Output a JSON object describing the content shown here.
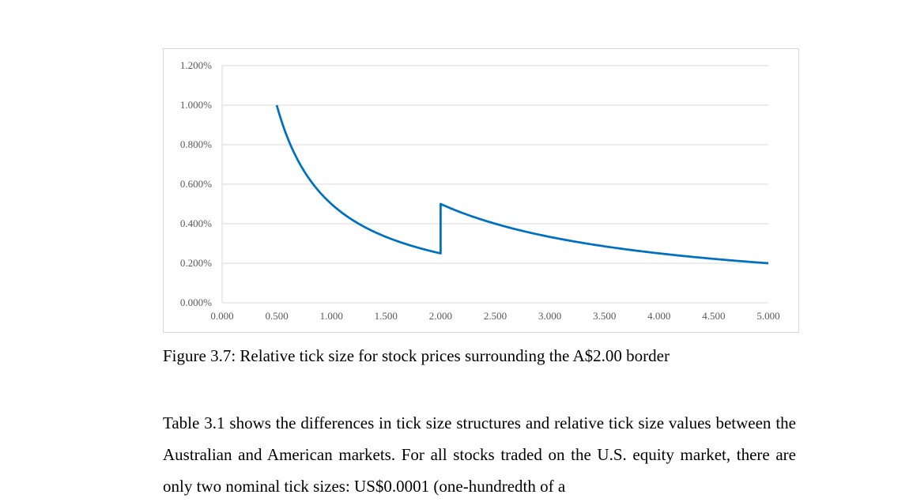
{
  "chart_data": {
    "type": "line",
    "title": "",
    "xlabel": "",
    "ylabel": "",
    "x_ticks": [
      "0.000",
      "0.500",
      "1.000",
      "1.500",
      "2.000",
      "2.500",
      "3.000",
      "3.500",
      "4.000",
      "4.500",
      "5.000"
    ],
    "y_ticks": [
      "0.000%",
      "0.200%",
      "0.400%",
      "0.600%",
      "0.800%",
      "1.000%",
      "1.200%"
    ],
    "xlim": [
      0,
      5
    ],
    "ylim": [
      0,
      1.2
    ],
    "grid": "horizontal",
    "legend": "none",
    "series": [
      {
        "color": "#0070c0",
        "segments": [
          {
            "tick_size": 0.005,
            "x_range": [
              0.5,
              2.0
            ],
            "points": [
              [
                0.5,
                1.0
              ],
              [
                0.75,
                0.667
              ],
              [
                1.0,
                0.5
              ],
              [
                1.5,
                0.333
              ],
              [
                2.0,
                0.25
              ]
            ]
          },
          {
            "tick_size": 0.01,
            "x_range": [
              2.0,
              5.0
            ],
            "points": [
              [
                2.0,
                0.5
              ],
              [
                2.5,
                0.4
              ],
              [
                3.0,
                0.333
              ],
              [
                4.0,
                0.25
              ],
              [
                5.0,
                0.2
              ]
            ]
          }
        ]
      }
    ]
  },
  "caption": "Figure 3.7: Relative tick size for stock prices surrounding the A$2.00 border",
  "paragraph": "Table 3.1 shows the differences in tick size structures and relative tick size values between the Australian and American markets. For all stocks traded on the U.S. equity market, there are only two nominal tick sizes: US$0.0001 (one-hundredth of a"
}
